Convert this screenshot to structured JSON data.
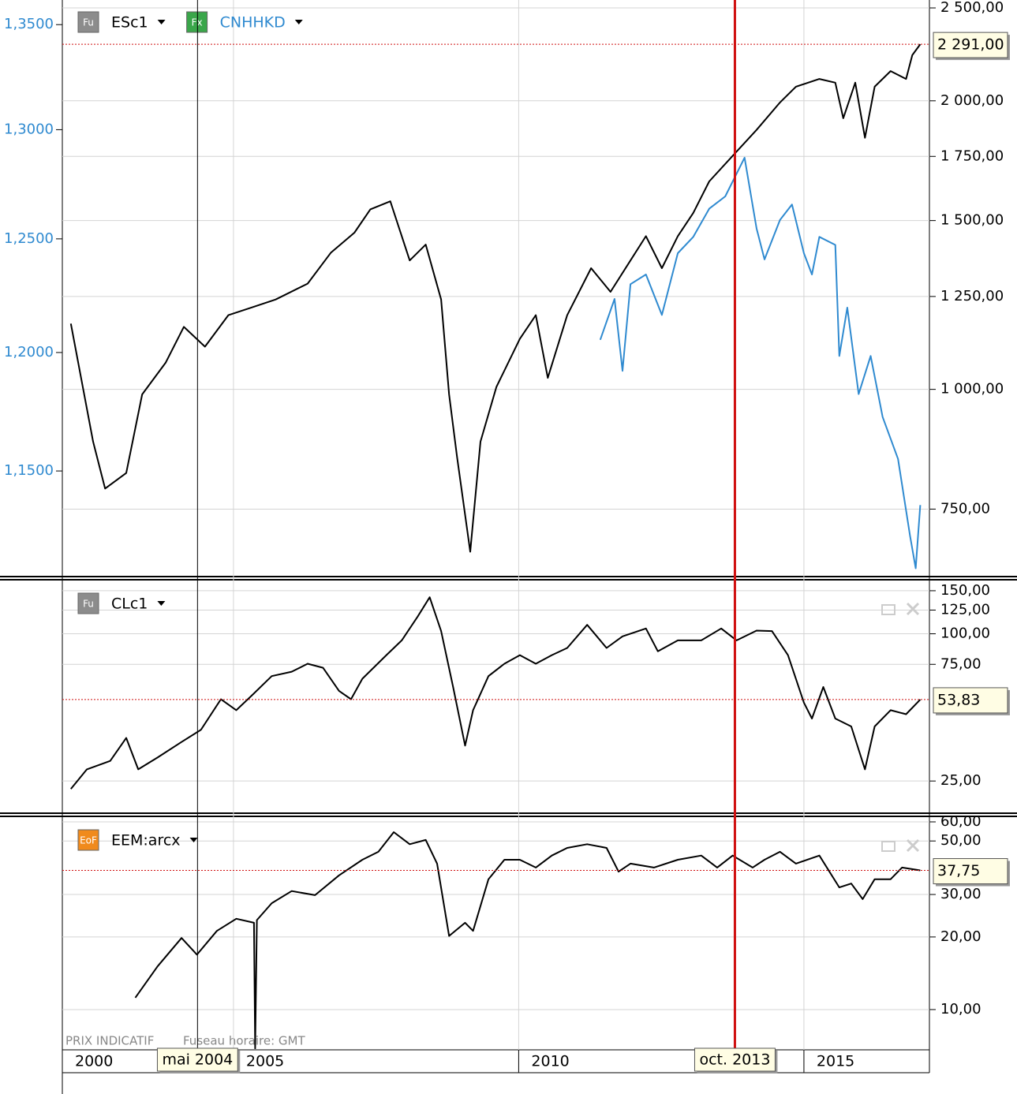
{
  "chart_data": [
    {
      "type": "line",
      "log": true,
      "grid": true,
      "ylim": [
        639,
        2548
      ],
      "yticks": [
        {
          "value": 750,
          "label": "750,00"
        },
        {
          "value": 1000,
          "label": "1 000,00"
        },
        {
          "value": 1250,
          "label": "1 250,00"
        },
        {
          "value": 1500,
          "label": "1 500,00"
        },
        {
          "value": 1750,
          "label": "1 750,00"
        },
        {
          "value": 2000,
          "label": "2 000,00"
        },
        {
          "value": 2500,
          "label": "2 500,00"
        }
      ],
      "y2lim": [
        1.1075,
        1.362
      ],
      "y2_position": "left",
      "y2ticks": [
        {
          "value": 1.15,
          "label": "1,1500"
        },
        {
          "value": 1.2,
          "label": "1,2000"
        },
        {
          "value": 1.25,
          "label": "1,2500"
        },
        {
          "value": 1.3,
          "label": "1,3000"
        },
        {
          "value": 1.35,
          "label": "1,3500"
        }
      ],
      "series": [
        {
          "name": "ESc1",
          "badge": "Fu",
          "badge_color": "#8c8c8c",
          "color": "#000000",
          "x": [
            2002.15,
            2002.54,
            2002.75,
            2003.12,
            2003.4,
            2003.81,
            2004.13,
            2004.5,
            2004.91,
            2005.33,
            2005.74,
            2006.3,
            2006.71,
            2007.12,
            2007.4,
            2007.75,
            2008.09,
            2008.37,
            2008.64,
            2008.78,
            2008.92,
            2009.15,
            2009.33,
            2009.61,
            2010.02,
            2010.3,
            2010.51,
            2010.85,
            2011.27,
            2011.61,
            2011.96,
            2012.23,
            2012.51,
            2012.79,
            2013.06,
            2013.34,
            2013.78,
            2014.17,
            2014.58,
            2014.86,
            2015.27,
            2015.55,
            2015.69,
            2015.9,
            2016.07,
            2016.24,
            2016.52,
            2016.79,
            2016.9,
            2017.04
          ],
          "values": [
            1171,
            882,
            788,
            818,
            988,
            1066,
            1162,
            1108,
            1195,
            1218,
            1241,
            1289,
            1389,
            1457,
            1541,
            1571,
            1363,
            1416,
            1241,
            988,
            850,
            677,
            882,
            1006,
            1129,
            1195,
            1028,
            1195,
            1338,
            1264,
            1363,
            1445,
            1338,
            1445,
            1528,
            1648,
            1760,
            1865,
            1992,
            2069,
            2108,
            2089,
            1918,
            2089,
            1830,
            2069,
            2148,
            2108,
            2232,
            2291
          ],
          "last_value": {
            "value": 2291,
            "label": "2 291,00"
          }
        },
        {
          "name": "CNHHKD",
          "badge": "Fx",
          "badge_color": "#3aa64a",
          "color": "#2f8ad0",
          "axis": "y2",
          "x": [
            2011.43,
            2011.68,
            2011.82,
            2011.96,
            2012.23,
            2012.51,
            2012.79,
            2013.06,
            2013.34,
            2013.62,
            2013.96,
            2014.17,
            2014.31,
            2014.58,
            2014.79,
            2015.0,
            2015.14,
            2015.27,
            2015.55,
            2015.62,
            2015.76,
            2015.96,
            2016.17,
            2016.38,
            2016.65,
            2016.86,
            2016.96,
            2017.04
          ],
          "values": [
            1.2055,
            1.2233,
            1.1921,
            1.2298,
            1.2341,
            1.2163,
            1.2436,
            1.2509,
            1.2636,
            1.2692,
            1.287,
            1.2547,
            1.2408,
            1.2585,
            1.2655,
            1.2436,
            1.2341,
            1.2509,
            1.2473,
            1.1985,
            1.2195,
            1.1822,
            1.1985,
            1.1725,
            1.155,
            1.1236,
            1.1105,
            1.136
          ]
        }
      ]
    },
    {
      "type": "line",
      "log": true,
      "grid": true,
      "ylim": [
        18.6,
        163.9
      ],
      "yticks": [
        {
          "value": 25,
          "label": "25,00"
        },
        {
          "value": 75,
          "label": "75,00"
        },
        {
          "value": 100,
          "label": "100,00"
        },
        {
          "value": 125,
          "label": "125,00"
        },
        {
          "value": 150,
          "label": "150,00"
        }
      ],
      "series": [
        {
          "name": "CLc1",
          "badge": "Fu",
          "badge_color": "#8c8c8c",
          "color": "#000000",
          "x": [
            2002.15,
            2002.43,
            2002.84,
            2003.12,
            2003.33,
            2003.67,
            2004.09,
            2004.43,
            2004.78,
            2005.05,
            2005.33,
            2005.67,
            2006.02,
            2006.3,
            2006.57,
            2006.85,
            2007.06,
            2007.26,
            2007.68,
            2007.95,
            2008.23,
            2008.44,
            2008.64,
            2008.85,
            2009.06,
            2009.2,
            2009.47,
            2009.75,
            2010.02,
            2010.3,
            2010.58,
            2010.85,
            2011.2,
            2011.54,
            2011.82,
            2012.23,
            2012.44,
            2012.79,
            2013.2,
            2013.55,
            2013.82,
            2014.17,
            2014.44,
            2014.72,
            2015.0,
            2015.14,
            2015.34,
            2015.55,
            2015.83,
            2016.07,
            2016.24,
            2016.52,
            2016.79,
            2017.04
          ],
          "values": [
            23.2,
            27.9,
            30.2,
            37.5,
            27.9,
            31.2,
            36.1,
            40.5,
            54.0,
            48.7,
            56.2,
            67.1,
            70.0,
            75.4,
            72.6,
            58.4,
            54.0,
            65.5,
            81.8,
            94.0,
            117.6,
            141.1,
            102.6,
            60.6,
            34.9,
            48.7,
            67.1,
            75.4,
            81.8,
            75.4,
            81.8,
            87.5,
            108.8,
            87.5,
            97.6,
            105.1,
            84.8,
            94.0,
            94.0,
            105.1,
            94.0,
            103.0,
            102.6,
            81.8,
            52.3,
            45.0,
            60.6,
            45.0,
            41.8,
            27.9,
            41.8,
            48.7,
            46.9,
            53.83
          ],
          "last_value": {
            "value": 53.83,
            "label": "53,83"
          }
        }
      ]
    },
    {
      "type": "line",
      "log": true,
      "grid": true,
      "ylim": [
        6.86,
        62.3
      ],
      "yticks": [
        {
          "value": 10,
          "label": "10,00"
        },
        {
          "value": 20,
          "label": "20,00"
        },
        {
          "value": 30,
          "label": "30,00"
        },
        {
          "value": 50,
          "label": "50,00"
        },
        {
          "value": 60,
          "label": "60,00"
        }
      ],
      "series": [
        {
          "name": "EEM:arcx",
          "badge": "EoF",
          "badge_color": "#f08a1c",
          "color": "#000000",
          "x": [
            2003.28,
            2003.67,
            2004.09,
            2004.36,
            2004.71,
            2005.05,
            2005.36,
            2005.38,
            2005.41,
            2005.67,
            2006.02,
            2006.43,
            2006.85,
            2007.26,
            2007.54,
            2007.81,
            2008.09,
            2008.37,
            2008.57,
            2008.78,
            2009.06,
            2009.2,
            2009.47,
            2009.75,
            2010.02,
            2010.3,
            2010.58,
            2010.85,
            2011.2,
            2011.54,
            2011.75,
            2011.96,
            2012.37,
            2012.79,
            2013.2,
            2013.48,
            2013.75,
            2014.1,
            2014.31,
            2014.58,
            2014.86,
            2015.27,
            2015.62,
            2015.83,
            2016.03,
            2016.24,
            2016.52,
            2016.72,
            2017.04
          ],
          "values": [
            11.2,
            15.1,
            19.8,
            16.9,
            21.2,
            23.8,
            22.9,
            6.9,
            23.5,
            27.6,
            31.0,
            29.8,
            36.0,
            41.8,
            45.1,
            54.4,
            48.5,
            50.5,
            40.3,
            20.2,
            22.9,
            21.2,
            34.7,
            41.8,
            41.8,
            38.8,
            43.5,
            46.8,
            48.5,
            46.8,
            37.3,
            40.3,
            38.8,
            41.8,
            43.5,
            38.8,
            43.5,
            38.8,
            41.8,
            45.1,
            40.3,
            43.5,
            32.1,
            33.3,
            28.7,
            34.7,
            34.7,
            38.8,
            37.75
          ],
          "last_value": {
            "value": 37.75,
            "label": "37,75"
          }
        }
      ]
    }
  ],
  "time_axis": {
    "xlim": [
      2002.0,
      2017.2
    ],
    "xticks": [
      2000,
      2005,
      2010,
      2015
    ],
    "cursor": {
      "x": 2004.37,
      "label": "mai 2004",
      "color": "#000000"
    },
    "marker": {
      "x": 2013.79,
      "label": "oct. 2013",
      "color": "#d01010"
    }
  },
  "footer": {
    "note": "PRIX INDICATIF",
    "timezone": "Fuseau horaire: GMT"
  }
}
